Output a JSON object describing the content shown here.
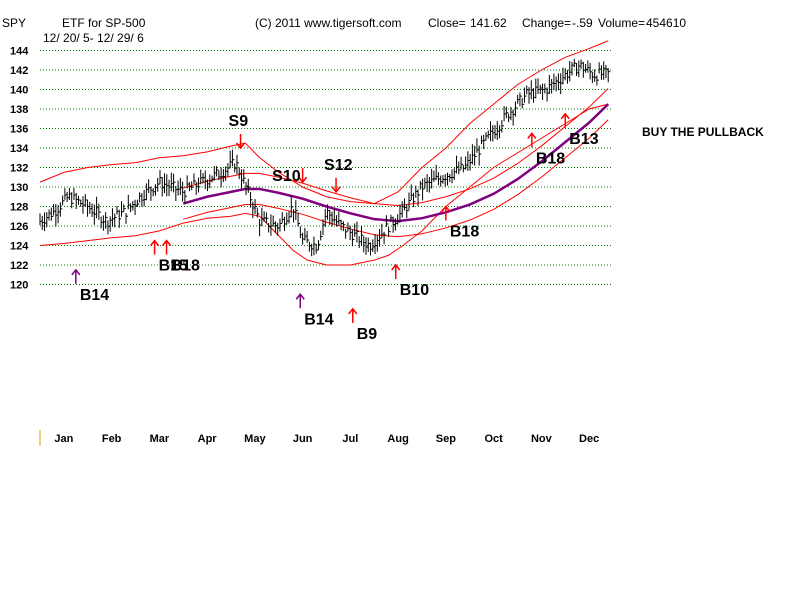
{
  "header": {
    "symbol": "SPY",
    "title": "ETF for SP-500",
    "date_range": "12/ 20/ 5- 12/ 29/ 6",
    "copyright": "(C) 2011 www.tigersoft.com",
    "close_label": "Close=",
    "close_value": "141.62",
    "change_label": "Change=",
    "change_value": "-.59",
    "volume_label": "Volume=",
    "volume_value": "454610"
  },
  "annotation": "BUY THE PULLBACK",
  "colors": {
    "price": "#000000",
    "bands": "#ff0000",
    "moving_average": "#800080",
    "buy_arrow": "#ff0000",
    "sell_arrow": "#ff0000",
    "b14_arrow": "#800080",
    "grid": "#008000"
  },
  "chart_data": {
    "type": "line",
    "ylim": [
      120,
      144
    ],
    "yticks": [
      "120",
      "122",
      "124",
      "126",
      "128",
      "130",
      "132",
      "134",
      "136",
      "138",
      "140",
      "142",
      "144"
    ],
    "months": [
      "Jan",
      "Feb",
      "Mar",
      "Apr",
      "May",
      "Jun",
      "Jul",
      "Aug",
      "Sep",
      "Oct",
      "Nov",
      "Dec"
    ],
    "month_pos": [
      0.5,
      1.5,
      2.5,
      3.5,
      4.5,
      5.5,
      6.5,
      7.5,
      8.5,
      9.5,
      10.5,
      11.5
    ],
    "grid": true,
    "price_series": {
      "t": [
        0,
        0.3,
        0.6,
        1.0,
        1.4,
        1.8,
        2.1,
        2.5,
        3.0,
        3.5,
        3.8,
        4.1,
        4.4,
        4.6,
        5.0,
        5.3,
        5.5,
        5.8,
        6.0,
        6.3,
        6.6,
        6.9,
        7.3,
        7.6,
        8.0,
        8.4,
        8.9,
        9.3,
        9.8,
        10.2,
        10.6,
        11.0,
        11.3,
        11.6,
        11.9
      ],
      "close": [
        126.5,
        127.5,
        129,
        128,
        126.5,
        127.5,
        129,
        130.5,
        129.5,
        130.8,
        131.5,
        132.5,
        129,
        126.5,
        126,
        128,
        124.5,
        124,
        127.5,
        126,
        125,
        124,
        126,
        127.5,
        130,
        131,
        132,
        134.5,
        137.5,
        139.5,
        140,
        141.5,
        142.5,
        141.5,
        141.62
      ]
    },
    "moving_average": {
      "t": [
        3.0,
        3.5,
        4.0,
        4.3,
        4.6,
        5.0,
        5.5,
        6.0,
        6.5,
        7.0,
        7.5,
        8.0,
        8.5,
        9.0,
        9.5,
        10.0,
        10.5,
        11.0,
        11.5,
        11.9
      ],
      "values": [
        128.3,
        129.0,
        129.5,
        129.8,
        129.8,
        129.4,
        128.8,
        128.0,
        127.3,
        126.7,
        126.5,
        126.8,
        127.4,
        128.2,
        129.3,
        130.8,
        132.6,
        134.6,
        136.6,
        138.5
      ]
    },
    "upper_band": {
      "t": [
        0,
        0.5,
        1.0,
        1.5,
        2.0,
        2.5,
        3.0,
        3.5,
        4.0,
        4.3,
        4.6,
        5.0,
        5.5,
        6.0,
        6.5,
        7.0,
        7.5,
        8.0,
        8.5,
        9.0,
        9.5,
        10.0,
        10.5,
        11.0,
        11.5,
        11.9
      ],
      "values": [
        130.5,
        131.5,
        132.0,
        132.3,
        132.5,
        133.0,
        133.2,
        133.6,
        134.2,
        134.5,
        133.0,
        131.5,
        130.0,
        129.0,
        128.5,
        128.3,
        129.5,
        132.0,
        134.0,
        136.5,
        138.5,
        140.5,
        142.0,
        143.3,
        144.2,
        145.0
      ]
    },
    "lower_band": {
      "t": [
        0,
        0.5,
        1.0,
        1.5,
        2.0,
        2.5,
        3.0,
        3.5,
        4.0,
        4.3,
        4.6,
        5.0,
        5.3,
        5.6,
        6.0,
        6.5,
        7.0,
        7.3,
        7.6,
        8.0,
        8.5,
        9.0,
        9.5,
        10.0,
        10.5,
        11.0,
        11.5,
        11.9
      ],
      "values": [
        124.0,
        124.2,
        124.5,
        124.8,
        125.0,
        125.5,
        126.3,
        126.8,
        127.0,
        127.3,
        127.0,
        125.0,
        123.5,
        122.5,
        122.0,
        122.0,
        122.5,
        123.0,
        124.0,
        125.5,
        128.0,
        130.0,
        132.0,
        133.5,
        135.0,
        136.5,
        138.0,
        138.5
      ]
    },
    "signals": [
      {
        "label": "S9",
        "type": "sell",
        "t": 4.2,
        "price": 134.0,
        "label_side": "above"
      },
      {
        "label": "S10",
        "type": "sell",
        "t": 5.5,
        "price": 130.5,
        "label_side": "left"
      },
      {
        "label": "S12",
        "type": "sell",
        "t": 6.2,
        "price": 129.5,
        "label_side": "above"
      },
      {
        "label": "B14",
        "type": "buy_purple",
        "t": 0.75,
        "price": 121.5,
        "label_side": "below"
      },
      {
        "label": "B15",
        "type": "buy",
        "t": 2.4,
        "price": 124.5,
        "label_side": "below"
      },
      {
        "label": "B18",
        "type": "buy",
        "t": 2.65,
        "price": 124.5,
        "label_side": "below"
      },
      {
        "label": "B14",
        "type": "buy_purple",
        "t": 5.45,
        "price": 119.0,
        "label_side": "below"
      },
      {
        "label": "B9",
        "type": "buy",
        "t": 6.55,
        "price": 117.5,
        "label_side": "below"
      },
      {
        "label": "B10",
        "type": "buy",
        "t": 7.45,
        "price": 122.0,
        "label_side": "below"
      },
      {
        "label": "B18",
        "type": "buy",
        "t": 8.5,
        "price": 128.0,
        "label_side": "below"
      },
      {
        "label": "B18",
        "type": "buy",
        "t": 10.3,
        "price": 135.5,
        "label_side": "below"
      },
      {
        "label": "B13",
        "type": "buy",
        "t": 11.0,
        "price": 137.5,
        "label_side": "below"
      }
    ]
  }
}
